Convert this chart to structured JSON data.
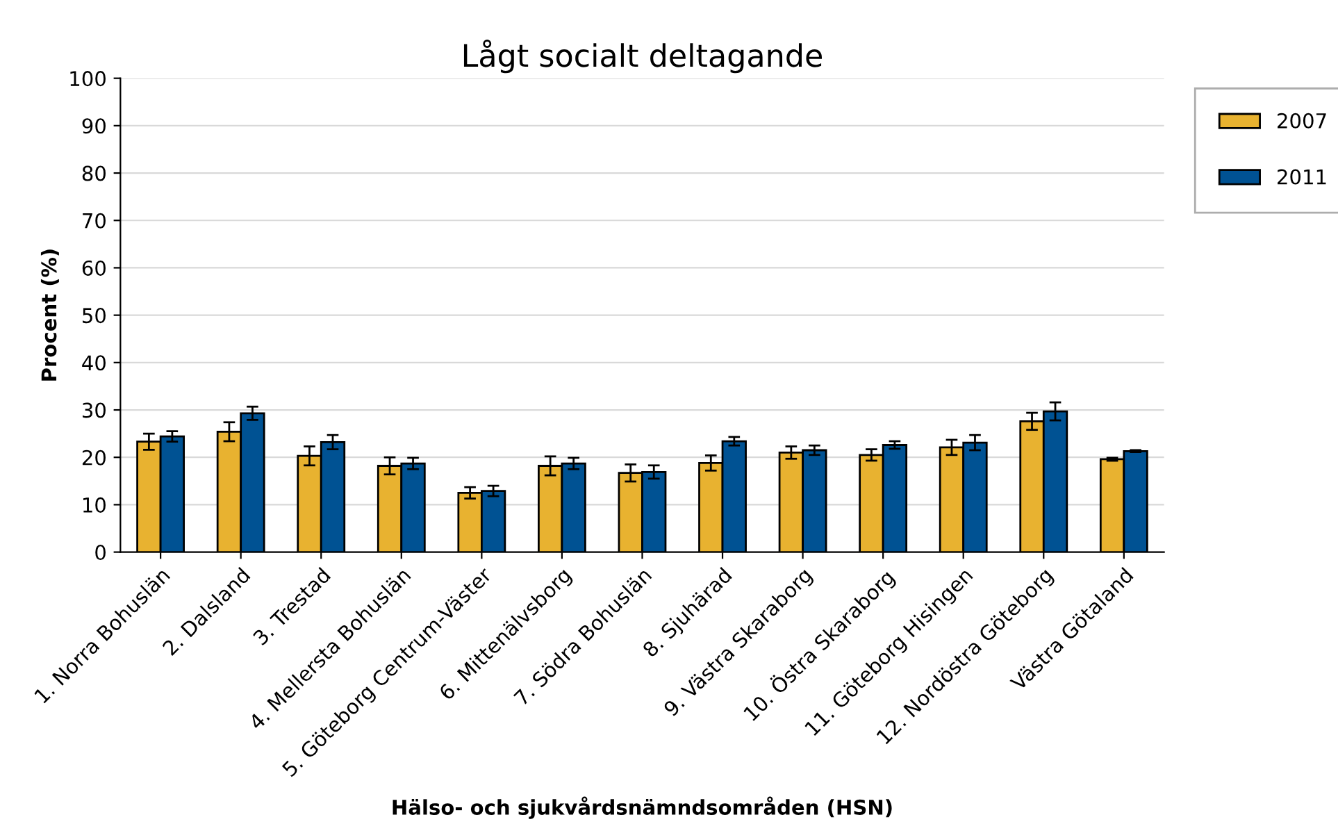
{
  "chart_data": {
    "type": "bar",
    "title": "Lågt socialt deltagande",
    "xlabel": "Hälso- och sjukvårdsnämndsområden (HSN)",
    "ylabel": "Procent (%)",
    "categories": [
      "1. Norra Bohuslän",
      "2. Dalsland",
      "3. Trestad",
      "4. Mellersta Bohuslän",
      "5. Göteborg Centrum-Väster",
      "6. Mittenälvsborg",
      "7. Södra Bohuslän",
      "8. Sjuhärad",
      "9. Västra Skaraborg",
      "10. Östra Skaraborg",
      "11. Göteborg Hisingen",
      "12. Nordöstra Göteborg",
      "Västra Götaland"
    ],
    "series": [
      {
        "name": "2007",
        "color": "#e8b230",
        "values": [
          23.3,
          25.4,
          20.3,
          18.2,
          12.5,
          18.2,
          16.7,
          18.8,
          21.0,
          20.5,
          22.1,
          27.6,
          19.6
        ],
        "errors": [
          1.7,
          2.0,
          2.0,
          1.8,
          1.2,
          2.0,
          1.8,
          1.6,
          1.3,
          1.2,
          1.6,
          1.8,
          0.3
        ]
      },
      {
        "name": "2011",
        "color": "#005293",
        "values": [
          24.4,
          29.3,
          23.2,
          18.7,
          12.9,
          18.7,
          16.9,
          23.4,
          21.5,
          22.6,
          23.1,
          29.7,
          21.3
        ],
        "errors": [
          1.1,
          1.4,
          1.5,
          1.2,
          1.1,
          1.2,
          1.4,
          0.9,
          1.0,
          0.8,
          1.6,
          1.9,
          0.2
        ]
      }
    ],
    "ylim": [
      0,
      100
    ],
    "yticks": [
      0,
      10,
      20,
      30,
      40,
      50,
      60,
      70,
      80,
      90,
      100
    ],
    "grid": "y",
    "legend": "top right"
  }
}
